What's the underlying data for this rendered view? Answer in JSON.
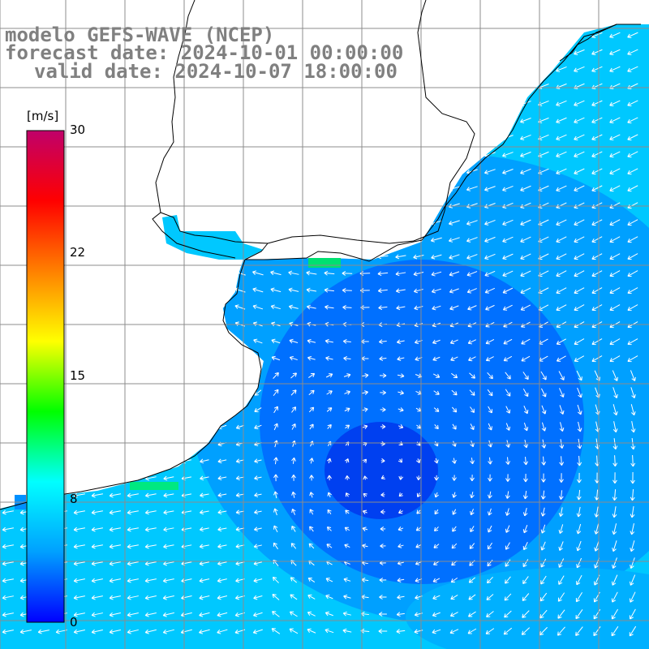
{
  "title": {
    "line1": "modelo GEFS-WAVE (NCEP)",
    "line2": "forecast date: 2024-10-01 00:00:00",
    "line3": "valid date: 2024-10-07 18:00:00"
  },
  "colorbar": {
    "unit": "[m/s]",
    "ticks": [
      "30",
      "22",
      "15",
      "8",
      "0"
    ],
    "tick_values": [
      30,
      22,
      15,
      8,
      0
    ],
    "range": [
      0,
      30
    ],
    "stops": [
      "#0000ff",
      "#00a0ff",
      "#00ffff",
      "#00ff00",
      "#ffff00",
      "#ff8000",
      "#ff0000",
      "#c0006a"
    ]
  },
  "map": {
    "field": "wind speed and direction",
    "land_color": "#ffffff",
    "grid_color": "#8c8c8c",
    "coast_color": "#000000",
    "arrow_color": "#ffffff"
  }
}
